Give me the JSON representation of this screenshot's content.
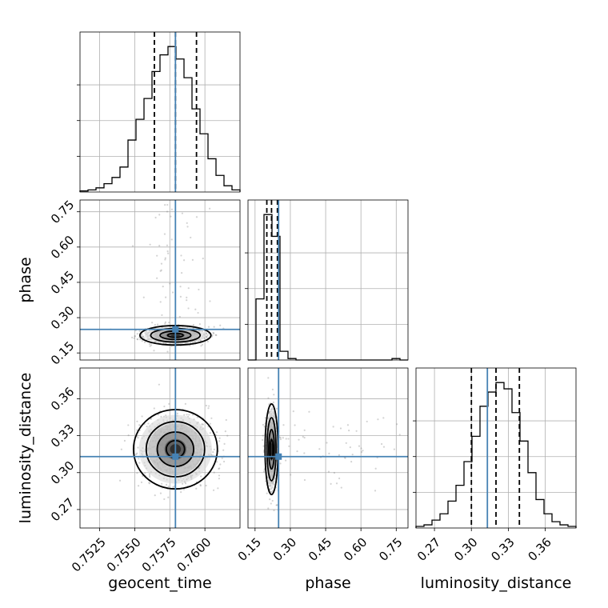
{
  "chart_data": {
    "type": "corner",
    "parameters": [
      "geocent_time",
      "phase",
      "luminosity_distance"
    ],
    "truths": {
      "geocent_time": 0.7579,
      "phase": 0.25,
      "luminosity_distance": 0.313
    },
    "quantiles": {
      "geocent_time": [
        0.7564,
        0.7579,
        0.7594
      ],
      "phase": [
        0.2,
        0.22,
        0.245
      ],
      "luminosity_distance": [
        0.3,
        0.32,
        0.339
      ]
    },
    "ranges": {
      "geocent_time": [
        0.7511,
        0.7625
      ],
      "phase": [
        0.12,
        0.8
      ],
      "luminosity_distance": [
        0.255,
        0.385
      ]
    },
    "ticks": {
      "geocent_time": {
        "values": [
          0.7525,
          0.755,
          0.7575,
          0.76
        ],
        "labels": [
          "0.7525",
          "0.7550",
          "0.7575",
          "0.7600"
        ]
      },
      "phase": {
        "values": [
          0.15,
          0.3,
          0.45,
          0.6,
          0.75
        ],
        "labels": [
          "0.15",
          "0.30",
          "0.45",
          "0.60",
          "0.75"
        ]
      },
      "luminosity_distance": {
        "values": [
          0.27,
          0.3,
          0.33,
          0.36
        ],
        "labels": [
          "0.27",
          "0.30",
          "0.33",
          "0.36"
        ]
      }
    },
    "histograms": {
      "geocent_time": [
        0.5,
        1,
        2,
        4,
        7,
        12,
        25,
        35,
        45,
        58,
        66,
        70,
        64,
        55,
        40,
        28,
        16,
        8,
        3,
        1
      ],
      "phase": [
        0,
        42,
        100,
        85,
        6,
        1,
        0,
        0,
        0,
        0,
        0,
        0,
        0,
        0,
        0,
        0,
        0,
        0,
        1,
        0
      ],
      "luminosity_distance": [
        1,
        2,
        5,
        9,
        17,
        27,
        42,
        58,
        77,
        86,
        92,
        88,
        73,
        55,
        35,
        18,
        9,
        4,
        2,
        1
      ]
    },
    "grid": true,
    "colors": {
      "hist": "#000000",
      "truth": "#4682b4",
      "quantile": "#000000",
      "scatter": "#808080"
    }
  }
}
